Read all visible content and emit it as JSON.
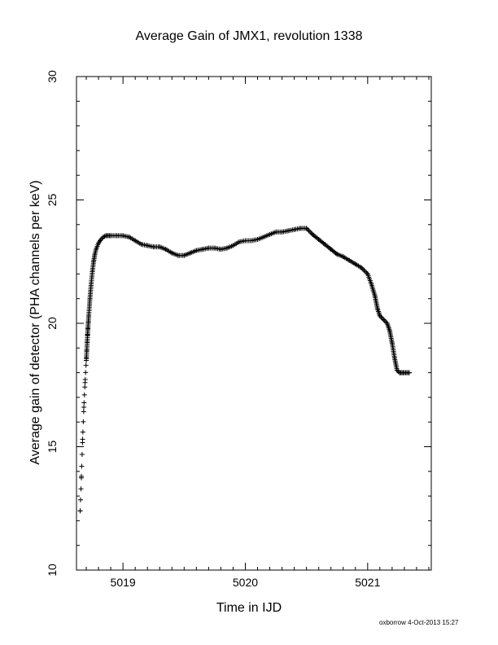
{
  "chart_data": {
    "type": "scatter",
    "title": "Average Gain of JMX1, revolution 1338",
    "xlabel": "Time in IJD",
    "ylabel": "Average gain of detector (PHA channels per keV)",
    "xlim": [
      5018.62,
      5021.52
    ],
    "ylim": [
      10,
      30
    ],
    "xticks": [
      5019,
      5020,
      5021
    ],
    "yticks": [
      10,
      15,
      20,
      25,
      30
    ],
    "marker": "plus",
    "grid": false,
    "series": [
      {
        "x": [
          5018.65,
          5018.66,
          5018.67,
          5018.68,
          5018.69,
          5018.7,
          5018.71,
          5018.72,
          5018.73,
          5018.74,
          5018.75,
          5018.76,
          5018.77,
          5018.78,
          5018.8,
          5018.82,
          5018.84,
          5018.86,
          5018.88,
          5018.9,
          5018.95,
          5019.0,
          5019.05,
          5019.1,
          5019.15,
          5019.2,
          5019.25,
          5019.3,
          5019.35,
          5019.4,
          5019.45,
          5019.5,
          5019.55,
          5019.6,
          5019.65,
          5019.7,
          5019.75,
          5019.8,
          5019.85,
          5019.9,
          5019.95,
          5020.0,
          5020.05,
          5020.1,
          5020.15,
          5020.2,
          5020.25,
          5020.3,
          5020.35,
          5020.4,
          5020.45,
          5020.5,
          5020.55,
          5020.6,
          5020.65,
          5020.7,
          5020.75,
          5020.8,
          5020.85,
          5020.9,
          5020.95,
          5021.0,
          5021.03,
          5021.06,
          5021.08,
          5021.1,
          5021.12,
          5021.14,
          5021.16,
          5021.18,
          5021.2,
          5021.22,
          5021.24,
          5021.26,
          5021.27,
          5021.28,
          5021.29,
          5021.3,
          5021.32,
          5021.34
        ],
        "y": [
          12.4,
          13.8,
          15.3,
          16.6,
          17.6,
          18.5,
          19.5,
          20.3,
          21.0,
          21.6,
          22.1,
          22.5,
          22.8,
          23.0,
          23.25,
          23.4,
          23.5,
          23.55,
          23.55,
          23.55,
          23.55,
          23.55,
          23.5,
          23.35,
          23.2,
          23.15,
          23.1,
          23.1,
          23.0,
          22.85,
          22.75,
          22.75,
          22.85,
          22.95,
          23.0,
          23.05,
          23.05,
          23.0,
          23.05,
          23.15,
          23.3,
          23.35,
          23.35,
          23.4,
          23.5,
          23.6,
          23.7,
          23.7,
          23.75,
          23.8,
          23.85,
          23.85,
          23.6,
          23.4,
          23.2,
          23.0,
          22.8,
          22.7,
          22.55,
          22.4,
          22.25,
          22.0,
          21.6,
          21.1,
          20.6,
          20.3,
          20.2,
          20.1,
          20.0,
          19.7,
          19.2,
          18.6,
          18.1,
          18.0,
          18.0,
          18.0,
          18.0,
          18.0,
          18.0,
          18.0
        ]
      }
    ]
  },
  "footer": "oxborrow  4-Oct-2013 15:27"
}
